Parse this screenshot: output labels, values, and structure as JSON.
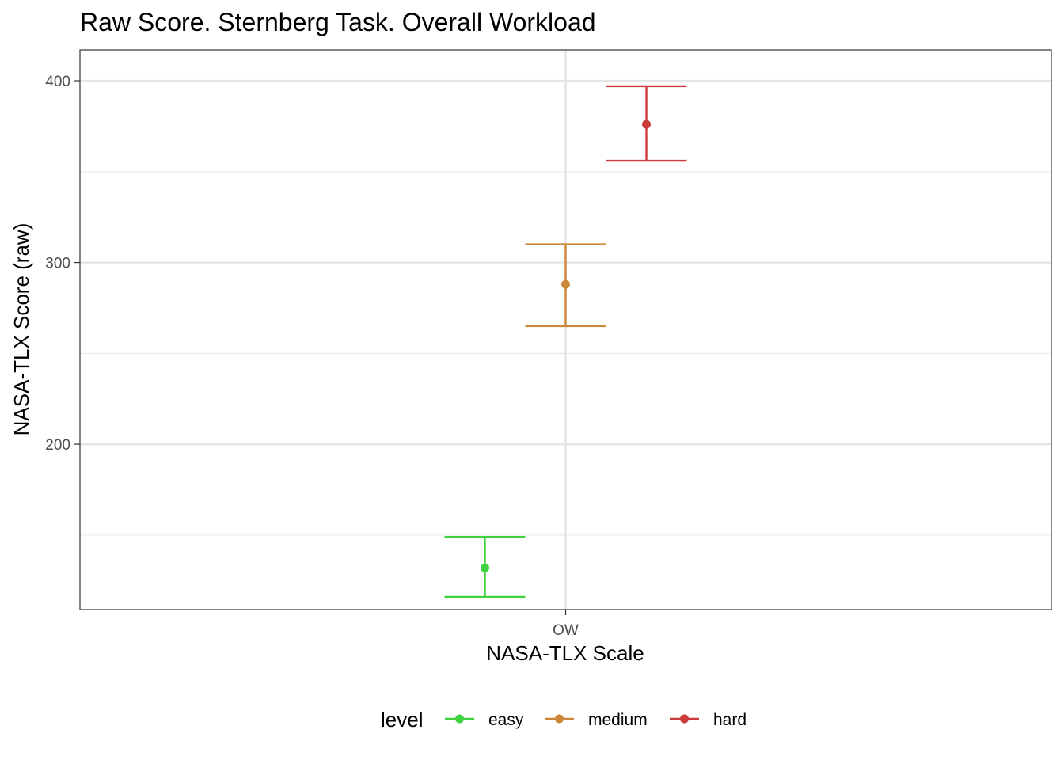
{
  "chart_data": {
    "type": "errorbar",
    "title": "Raw Score. Sternberg Task. Overall Workload",
    "xlabel": "NASA-TLX Scale",
    "ylabel": "NASA-TLX Score (raw)",
    "categories": [
      "OW"
    ],
    "ylim": [
      109,
      417
    ],
    "yticks": [
      200,
      300,
      400
    ],
    "grid": true,
    "legend": {
      "title": "level",
      "position": "bottom"
    },
    "series": [
      {
        "name": "easy",
        "color": "#3fd13f",
        "value": 132,
        "low": 116,
        "high": 149
      },
      {
        "name": "medium",
        "color": "#cd8738",
        "value": 288,
        "low": 265,
        "high": 310
      },
      {
        "name": "hard",
        "color": "#cc3b3b",
        "value": 376,
        "low": 356,
        "high": 397
      }
    ]
  }
}
